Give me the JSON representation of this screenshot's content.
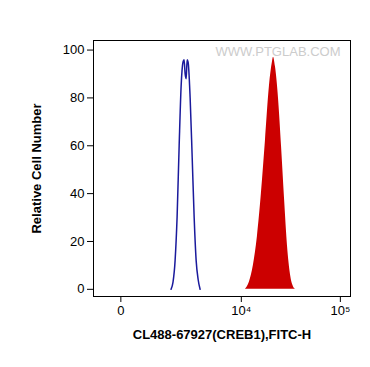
{
  "chart_data": {
    "type": "histogram",
    "x_label": "CL488-67927(CREB1),FITC-H",
    "y_label": "Relative Cell Number",
    "log": "x",
    "xlim": [
      -600,
      126000
    ],
    "xticks": [
      0,
      {
        "value": 10000,
        "label": "10⁴"
      },
      {
        "value": 100000,
        "label": "10⁵"
      }
    ],
    "ylim": [
      -3,
      104
    ],
    "yticks": [
      0,
      20,
      40,
      60,
      80,
      100
    ],
    "grid": false,
    "annotations": [
      {
        "text": "WWW.PTGLAB.COM"
      }
    ],
    "series": [
      {
        "type": "line",
        "color": "#1a1a9c",
        "x": [
          1480,
          1580,
          1690,
          1800,
          1920,
          2040,
          2160,
          2230,
          2300,
          2370,
          2440,
          2510,
          2660,
          2820,
          2980,
          3150,
          3330,
          3510
        ],
        "values": [
          0,
          3,
          12,
          30,
          60,
          85,
          95,
          96,
          90,
          88,
          96,
          95,
          80,
          55,
          30,
          12,
          4,
          0
        ]
      },
      {
        "type": "area",
        "color": "#cc0000",
        "x": [
          11020,
          12140,
          13360,
          14700,
          16160,
          17770,
          19530,
          20960,
          21460,
          22480,
          24110,
          25870,
          27750,
          29750,
          31900,
          34200,
          35840
        ],
        "values": [
          0,
          3,
          10,
          22,
          40,
          62,
          85,
          95,
          97,
          93,
          80,
          60,
          38,
          18,
          6,
          1,
          0
        ]
      }
    ]
  }
}
